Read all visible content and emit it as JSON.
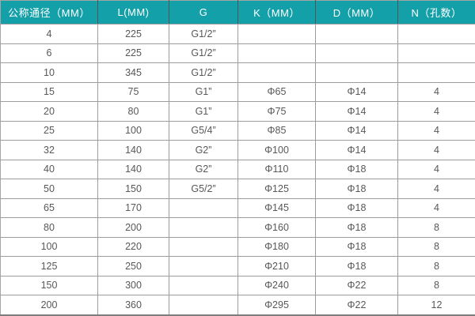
{
  "chart_data": {
    "type": "table",
    "title": "",
    "columns": [
      {
        "key": "dn",
        "label": "公称通径（MM）"
      },
      {
        "key": "l",
        "label": "L(MM)"
      },
      {
        "key": "g",
        "label": "G"
      },
      {
        "key": "k",
        "label": "K（MM）"
      },
      {
        "key": "d",
        "label": "D（MM）"
      },
      {
        "key": "n",
        "label": "N（孔数）"
      }
    ],
    "rows": [
      [
        "4",
        "225",
        "G1/2”",
        "",
        "",
        ""
      ],
      [
        "6",
        "225",
        "G1/2”",
        "",
        "",
        ""
      ],
      [
        "10",
        "345",
        "G1/2”",
        "",
        "",
        ""
      ],
      [
        "15",
        "75",
        "G1”",
        "Φ65",
        "Φ14",
        "4"
      ],
      [
        "20",
        "80",
        "G1”",
        "Φ75",
        "Φ14",
        "4"
      ],
      [
        "25",
        "100",
        "G5/4”",
        "Φ85",
        "Φ14",
        "4"
      ],
      [
        "32",
        "140",
        "G2”",
        "Φ100",
        "Φ14",
        "4"
      ],
      [
        "40",
        "140",
        "G2”",
        "Φ110",
        "Φ18",
        "4"
      ],
      [
        "50",
        "150",
        "G5/2”",
        "Φ125",
        "Φ18",
        "4"
      ],
      [
        "65",
        "170",
        "",
        "Φ145",
        "Φ18",
        "4"
      ],
      [
        "80",
        "200",
        "",
        "Φ160",
        "Φ18",
        "8"
      ],
      [
        "100",
        "220",
        "",
        "Φ180",
        "Φ18",
        "8"
      ],
      [
        "125",
        "250",
        "",
        "Φ210",
        "Φ18",
        "8"
      ],
      [
        "150",
        "300",
        "",
        "Φ240",
        "Φ22",
        "8"
      ],
      [
        "200",
        "360",
        "",
        "Φ295",
        "Φ22",
        "12"
      ]
    ]
  },
  "colors": {
    "header_bg": "#14a0a8",
    "header_text": "#ffffff",
    "cell_text": "#58585a",
    "grid_line": "#9c9c9c",
    "header_divider": "#545454",
    "outer_border": "#a6a6a6",
    "bottom_border": "#7d7d7d"
  }
}
